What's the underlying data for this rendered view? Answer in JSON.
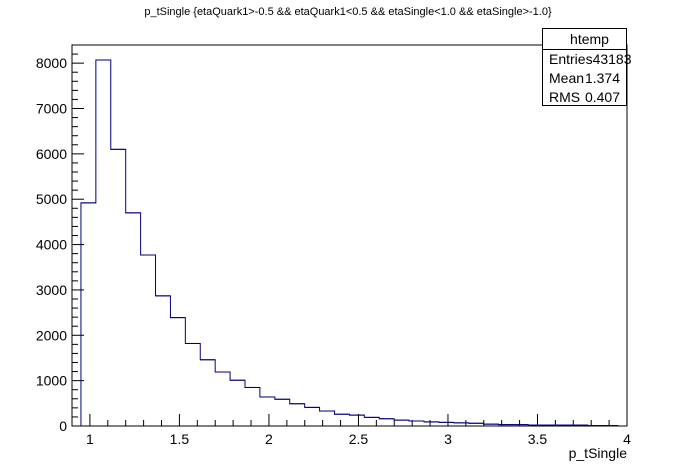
{
  "title": "p_tSingle {etaQuark1>-0.5 && etaQuark1<0.5 && etaSingle<1.0 && etaSingle>-1.0}",
  "stats": {
    "name": "htemp",
    "entries_label": "Entries",
    "entries_value": "43183",
    "mean_label": "Mean",
    "mean_value": "1.374",
    "rms_label": "RMS",
    "rms_value": "0.407"
  },
  "colors": {
    "histogram_line": "#00007f",
    "axes": "#000000"
  },
  "chart_data": {
    "type": "bar",
    "style": "step-histogram",
    "xlabel": "p_tSingle",
    "ylabel": "",
    "xlim": [
      0.9,
      4.0
    ],
    "ylim": [
      0,
      8400
    ],
    "x_ticks": [
      1,
      1.5,
      2,
      2.5,
      3,
      3.5,
      4
    ],
    "x_tick_labels": [
      "1",
      "1.5",
      "2",
      "2.5",
      "3",
      "3.5",
      "4"
    ],
    "y_ticks": [
      0,
      1000,
      2000,
      3000,
      4000,
      5000,
      6000,
      7000,
      8000
    ],
    "y_tick_labels": [
      "0",
      "1000",
      "2000",
      "3000",
      "4000",
      "5000",
      "6000",
      "7000",
      "8000"
    ],
    "bin_width": 0.0833,
    "bin_edges_start": 0.95,
    "values": [
      4920,
      8070,
      6100,
      4700,
      3770,
      2870,
      2390,
      1820,
      1460,
      1190,
      1010,
      850,
      640,
      590,
      490,
      410,
      330,
      260,
      240,
      190,
      160,
      130,
      110,
      90,
      80,
      70,
      60,
      40,
      30,
      30,
      20,
      20,
      20,
      20,
      10,
      10
    ]
  }
}
